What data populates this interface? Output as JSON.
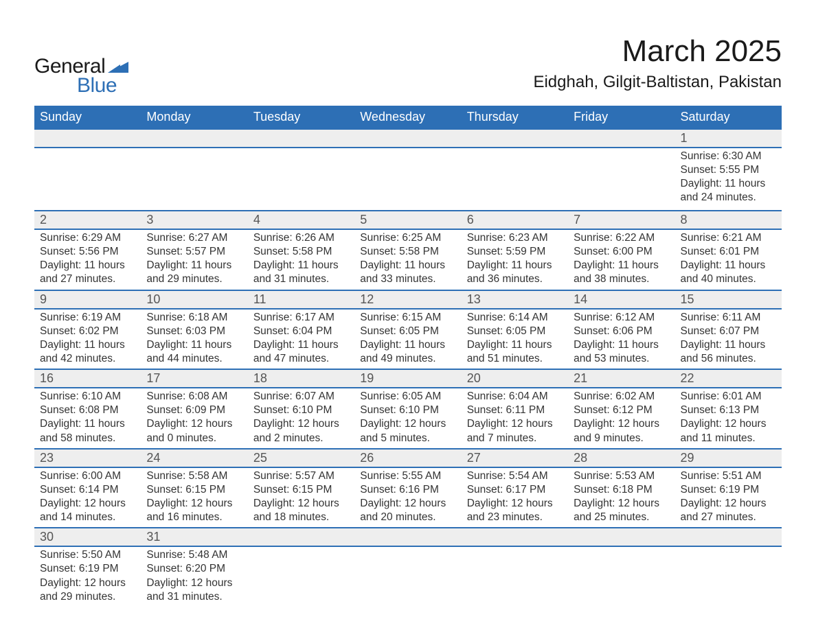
{
  "logo": {
    "text1": "General",
    "text2": "Blue",
    "shape_color": "#2d6fb5",
    "text1_color": "#1a1a1a"
  },
  "title": "March 2025",
  "location": "Eidghah, Gilgit-Baltistan, Pakistan",
  "colors": {
    "header_bg": "#2d6fb5",
    "header_text": "#ffffff",
    "daynum_bg": "#eeeeee",
    "row_divider": "#2d6fb5",
    "body_text": "#333333",
    "daynum_text": "#555555",
    "page_bg": "#ffffff"
  },
  "fonts": {
    "title_size_pt": 33,
    "location_size_pt": 18,
    "header_size_pt": 14,
    "daynum_size_pt": 14,
    "detail_size_pt": 12
  },
  "weekdays": [
    "Sunday",
    "Monday",
    "Tuesday",
    "Wednesday",
    "Thursday",
    "Friday",
    "Saturday"
  ],
  "weeks": [
    [
      {
        "day": "",
        "sunrise": "",
        "sunset": "",
        "daylight": ""
      },
      {
        "day": "",
        "sunrise": "",
        "sunset": "",
        "daylight": ""
      },
      {
        "day": "",
        "sunrise": "",
        "sunset": "",
        "daylight": ""
      },
      {
        "day": "",
        "sunrise": "",
        "sunset": "",
        "daylight": ""
      },
      {
        "day": "",
        "sunrise": "",
        "sunset": "",
        "daylight": ""
      },
      {
        "day": "",
        "sunrise": "",
        "sunset": "",
        "daylight": ""
      },
      {
        "day": "1",
        "sunrise": "Sunrise: 6:30 AM",
        "sunset": "Sunset: 5:55 PM",
        "daylight": "Daylight: 11 hours and 24 minutes."
      }
    ],
    [
      {
        "day": "2",
        "sunrise": "Sunrise: 6:29 AM",
        "sunset": "Sunset: 5:56 PM",
        "daylight": "Daylight: 11 hours and 27 minutes."
      },
      {
        "day": "3",
        "sunrise": "Sunrise: 6:27 AM",
        "sunset": "Sunset: 5:57 PM",
        "daylight": "Daylight: 11 hours and 29 minutes."
      },
      {
        "day": "4",
        "sunrise": "Sunrise: 6:26 AM",
        "sunset": "Sunset: 5:58 PM",
        "daylight": "Daylight: 11 hours and 31 minutes."
      },
      {
        "day": "5",
        "sunrise": "Sunrise: 6:25 AM",
        "sunset": "Sunset: 5:58 PM",
        "daylight": "Daylight: 11 hours and 33 minutes."
      },
      {
        "day": "6",
        "sunrise": "Sunrise: 6:23 AM",
        "sunset": "Sunset: 5:59 PM",
        "daylight": "Daylight: 11 hours and 36 minutes."
      },
      {
        "day": "7",
        "sunrise": "Sunrise: 6:22 AM",
        "sunset": "Sunset: 6:00 PM",
        "daylight": "Daylight: 11 hours and 38 minutes."
      },
      {
        "day": "8",
        "sunrise": "Sunrise: 6:21 AM",
        "sunset": "Sunset: 6:01 PM",
        "daylight": "Daylight: 11 hours and 40 minutes."
      }
    ],
    [
      {
        "day": "9",
        "sunrise": "Sunrise: 6:19 AM",
        "sunset": "Sunset: 6:02 PM",
        "daylight": "Daylight: 11 hours and 42 minutes."
      },
      {
        "day": "10",
        "sunrise": "Sunrise: 6:18 AM",
        "sunset": "Sunset: 6:03 PM",
        "daylight": "Daylight: 11 hours and 44 minutes."
      },
      {
        "day": "11",
        "sunrise": "Sunrise: 6:17 AM",
        "sunset": "Sunset: 6:04 PM",
        "daylight": "Daylight: 11 hours and 47 minutes."
      },
      {
        "day": "12",
        "sunrise": "Sunrise: 6:15 AM",
        "sunset": "Sunset: 6:05 PM",
        "daylight": "Daylight: 11 hours and 49 minutes."
      },
      {
        "day": "13",
        "sunrise": "Sunrise: 6:14 AM",
        "sunset": "Sunset: 6:05 PM",
        "daylight": "Daylight: 11 hours and 51 minutes."
      },
      {
        "day": "14",
        "sunrise": "Sunrise: 6:12 AM",
        "sunset": "Sunset: 6:06 PM",
        "daylight": "Daylight: 11 hours and 53 minutes."
      },
      {
        "day": "15",
        "sunrise": "Sunrise: 6:11 AM",
        "sunset": "Sunset: 6:07 PM",
        "daylight": "Daylight: 11 hours and 56 minutes."
      }
    ],
    [
      {
        "day": "16",
        "sunrise": "Sunrise: 6:10 AM",
        "sunset": "Sunset: 6:08 PM",
        "daylight": "Daylight: 11 hours and 58 minutes."
      },
      {
        "day": "17",
        "sunrise": "Sunrise: 6:08 AM",
        "sunset": "Sunset: 6:09 PM",
        "daylight": "Daylight: 12 hours and 0 minutes."
      },
      {
        "day": "18",
        "sunrise": "Sunrise: 6:07 AM",
        "sunset": "Sunset: 6:10 PM",
        "daylight": "Daylight: 12 hours and 2 minutes."
      },
      {
        "day": "19",
        "sunrise": "Sunrise: 6:05 AM",
        "sunset": "Sunset: 6:10 PM",
        "daylight": "Daylight: 12 hours and 5 minutes."
      },
      {
        "day": "20",
        "sunrise": "Sunrise: 6:04 AM",
        "sunset": "Sunset: 6:11 PM",
        "daylight": "Daylight: 12 hours and 7 minutes."
      },
      {
        "day": "21",
        "sunrise": "Sunrise: 6:02 AM",
        "sunset": "Sunset: 6:12 PM",
        "daylight": "Daylight: 12 hours and 9 minutes."
      },
      {
        "day": "22",
        "sunrise": "Sunrise: 6:01 AM",
        "sunset": "Sunset: 6:13 PM",
        "daylight": "Daylight: 12 hours and 11 minutes."
      }
    ],
    [
      {
        "day": "23",
        "sunrise": "Sunrise: 6:00 AM",
        "sunset": "Sunset: 6:14 PM",
        "daylight": "Daylight: 12 hours and 14 minutes."
      },
      {
        "day": "24",
        "sunrise": "Sunrise: 5:58 AM",
        "sunset": "Sunset: 6:15 PM",
        "daylight": "Daylight: 12 hours and 16 minutes."
      },
      {
        "day": "25",
        "sunrise": "Sunrise: 5:57 AM",
        "sunset": "Sunset: 6:15 PM",
        "daylight": "Daylight: 12 hours and 18 minutes."
      },
      {
        "day": "26",
        "sunrise": "Sunrise: 5:55 AM",
        "sunset": "Sunset: 6:16 PM",
        "daylight": "Daylight: 12 hours and 20 minutes."
      },
      {
        "day": "27",
        "sunrise": "Sunrise: 5:54 AM",
        "sunset": "Sunset: 6:17 PM",
        "daylight": "Daylight: 12 hours and 23 minutes."
      },
      {
        "day": "28",
        "sunrise": "Sunrise: 5:53 AM",
        "sunset": "Sunset: 6:18 PM",
        "daylight": "Daylight: 12 hours and 25 minutes."
      },
      {
        "day": "29",
        "sunrise": "Sunrise: 5:51 AM",
        "sunset": "Sunset: 6:19 PM",
        "daylight": "Daylight: 12 hours and 27 minutes."
      }
    ],
    [
      {
        "day": "30",
        "sunrise": "Sunrise: 5:50 AM",
        "sunset": "Sunset: 6:19 PM",
        "daylight": "Daylight: 12 hours and 29 minutes."
      },
      {
        "day": "31",
        "sunrise": "Sunrise: 5:48 AM",
        "sunset": "Sunset: 6:20 PM",
        "daylight": "Daylight: 12 hours and 31 minutes."
      },
      {
        "day": "",
        "sunrise": "",
        "sunset": "",
        "daylight": ""
      },
      {
        "day": "",
        "sunrise": "",
        "sunset": "",
        "daylight": ""
      },
      {
        "day": "",
        "sunrise": "",
        "sunset": "",
        "daylight": ""
      },
      {
        "day": "",
        "sunrise": "",
        "sunset": "",
        "daylight": ""
      },
      {
        "day": "",
        "sunrise": "",
        "sunset": "",
        "daylight": ""
      }
    ]
  ]
}
